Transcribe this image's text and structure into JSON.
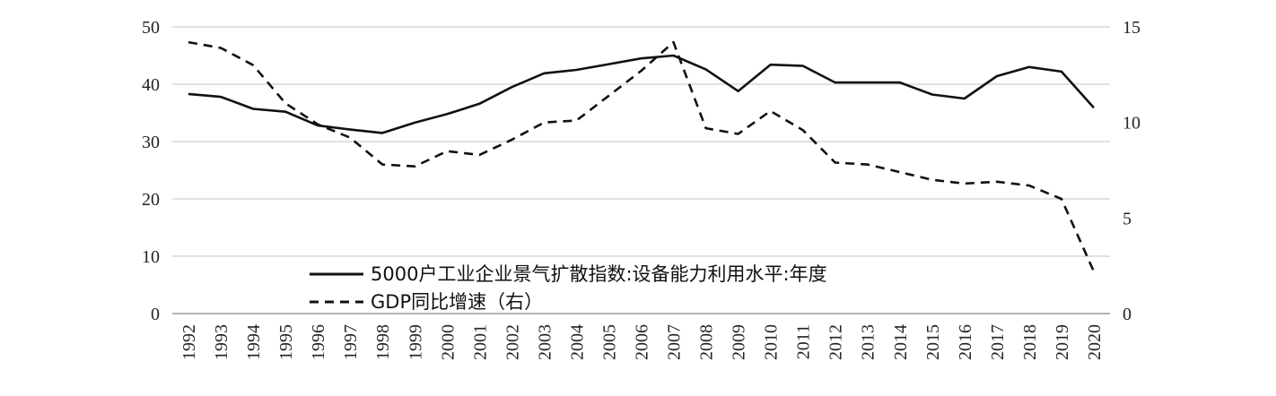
{
  "chart_data": {
    "type": "line",
    "title": "",
    "x": [
      "1992",
      "1993",
      "1994",
      "1995",
      "1996",
      "1997",
      "1998",
      "1999",
      "2000",
      "2001",
      "2002",
      "2003",
      "2004",
      "2005",
      "2006",
      "2007",
      "2008",
      "2009",
      "2010",
      "2011",
      "2012",
      "2013",
      "2014",
      "2015",
      "2016",
      "2017",
      "2018",
      "2019",
      "2020"
    ],
    "y_left": {
      "ylim": [
        0,
        50
      ],
      "ticks": [
        "0",
        "10",
        "20",
        "30",
        "40",
        "50"
      ]
    },
    "y_right": {
      "ylim": [
        0,
        15
      ],
      "ticks": [
        "0",
        "5",
        "10",
        "15"
      ]
    },
    "grid": "horizontal",
    "legend_position": "bottom-center",
    "series": [
      {
        "name": "5000户工业企业景气扩散指数:设备能力利用水平:年度",
        "axis": "left",
        "style": "solid",
        "color": "#111111",
        "values": [
          38.3,
          37.8,
          35.7,
          35.2,
          32.8,
          32.1,
          31.5,
          33.3,
          34.8,
          36.6,
          39.5,
          41.9,
          42.5,
          43.5,
          44.5,
          45.0,
          42.6,
          38.8,
          43.4,
          43.2,
          40.3,
          40.3,
          40.3,
          38.2,
          37.5,
          41.4,
          43.0,
          42.2,
          35.9
        ]
      },
      {
        "name": "GDP同比增速（右）",
        "axis": "right",
        "style": "dashed",
        "color": "#111111",
        "values": [
          14.2,
          13.9,
          13.0,
          11.0,
          9.9,
          9.2,
          7.8,
          7.7,
          8.5,
          8.3,
          9.1,
          10.0,
          10.1,
          11.4,
          12.7,
          14.2,
          9.7,
          9.4,
          10.6,
          9.6,
          7.9,
          7.8,
          7.4,
          7.0,
          6.8,
          6.9,
          6.7,
          6.0,
          2.2
        ]
      }
    ]
  }
}
